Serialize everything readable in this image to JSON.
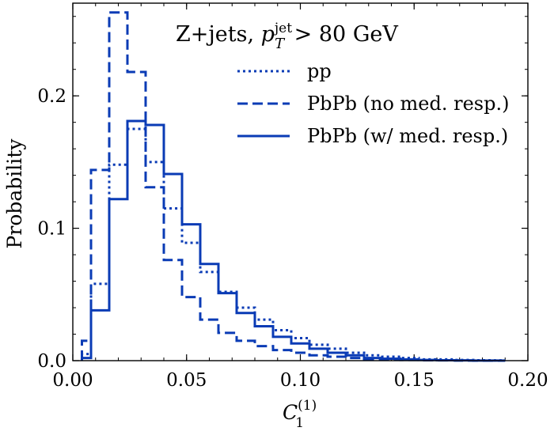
{
  "chart_data": {
    "type": "step",
    "title": "Z+jets, p_T^jet > 80 GeV",
    "title_parts": {
      "prefix": "Z+jets, ",
      "p": "p",
      "sub": "T",
      "sup": "jet",
      "suffix": " > 80 GeV"
    },
    "xlabel": "C_1^(1)",
    "xlabel_parts": {
      "main": "C",
      "sub": "1",
      "sup": "(1)"
    },
    "ylabel": "Probability",
    "xlim": [
      0.0,
      0.2
    ],
    "ylim": [
      0.0,
      0.27
    ],
    "xticks": [
      "0.00",
      "0.05",
      "0.10",
      "0.15",
      "0.20"
    ],
    "xtick_values": [
      0.0,
      0.05,
      0.1,
      0.15,
      0.2
    ],
    "yticks": [
      "0.0",
      "0.1",
      "0.2"
    ],
    "ytick_values": [
      0.0,
      0.1,
      0.2
    ],
    "x_minor_step": 0.01,
    "y_minor_step": 0.02,
    "legend_position": "upper-right",
    "bin_edges": [
      0.004,
      0.008,
      0.016,
      0.024,
      0.032,
      0.04,
      0.048,
      0.056,
      0.064,
      0.072,
      0.08,
      0.088,
      0.096,
      0.104,
      0.112,
      0.12,
      0.128,
      0.136,
      0.144,
      0.152,
      0.16,
      0.168,
      0.176,
      0.184,
      0.19
    ],
    "series": [
      {
        "name": "pp",
        "style": "dotted",
        "color": "#0a3bb5",
        "values": [
          0.005,
          0.058,
          0.148,
          0.175,
          0.15,
          0.115,
          0.089,
          0.067,
          0.052,
          0.04,
          0.031,
          0.023,
          0.017,
          0.012,
          0.009,
          0.006,
          0.004,
          0.003,
          0.002,
          0.001,
          0.001,
          0.0005,
          0.0003,
          0.0002
        ]
      },
      {
        "name": "PbPb (no med. resp.)",
        "style": "dashed",
        "color": "#0a3bb5",
        "values": [
          0.015,
          0.144,
          0.263,
          0.218,
          0.131,
          0.076,
          0.048,
          0.031,
          0.021,
          0.015,
          0.011,
          0.008,
          0.006,
          0.004,
          0.003,
          0.002,
          0.001,
          0.001,
          0.0005,
          0.0003,
          0.0002,
          0.0001,
          0.0,
          0.0
        ]
      },
      {
        "name": "PbPb (w/ med. resp.)",
        "style": "solid",
        "color": "#0a3bb5",
        "values": [
          0.002,
          0.038,
          0.122,
          0.181,
          0.178,
          0.141,
          0.103,
          0.073,
          0.051,
          0.036,
          0.026,
          0.018,
          0.013,
          0.009,
          0.006,
          0.004,
          0.002,
          0.0015,
          0.001,
          0.0005,
          0.0003,
          0.0002,
          0.0001,
          0.0001
        ]
      }
    ]
  }
}
